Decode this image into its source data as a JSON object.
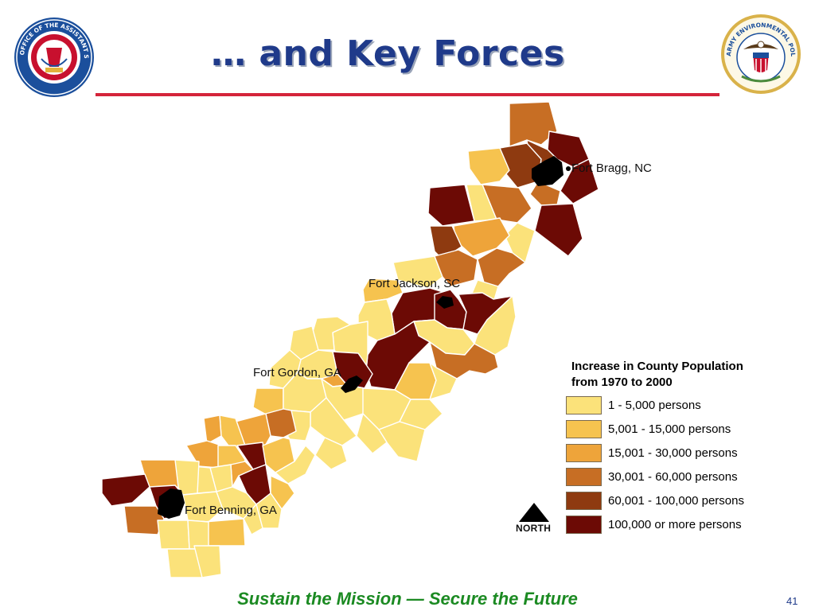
{
  "title": "… and Key Forces",
  "footer": "Sustain the Mission — Secure the Future",
  "page_number": "41",
  "installations": [
    {
      "name": "Fort Bragg, NC"
    },
    {
      "name": "Fort Jackson, SC"
    },
    {
      "name": "Fort Gordon, GA"
    },
    {
      "name": "Fort Benning, GA"
    }
  ],
  "legend": {
    "title_line1": "Increase in County Population",
    "title_line2": "from 1970 to 2000",
    "items": [
      {
        "label": "1 - 5,000 persons",
        "color": "#fbe27a"
      },
      {
        "label": "5,001 - 15,000 persons",
        "color": "#f6c34f"
      },
      {
        "label": "15,001 - 30,000 persons",
        "color": "#eea43a"
      },
      {
        "label": "30,001 - 60,000 persons",
        "color": "#c76e24"
      },
      {
        "label": "60,001 - 100,000 persons",
        "color": "#8e3a10"
      },
      {
        "label": "100,000  or more persons",
        "color": "#6c0a05"
      }
    ]
  },
  "north_arrow": {
    "label": "NORTH",
    "icon": "north-arrow-icon"
  },
  "logos": {
    "left": {
      "icon": "office-assistant-secretary-army-seal-icon",
      "text": "OFFICE OF THE ASSISTANT SECRETARY OF THE ARMY"
    },
    "right": {
      "icon": "army-environmental-policy-institute-seal-icon",
      "text": "ARMY ENVIRONMENTAL POLICY INSTITUTE"
    }
  }
}
